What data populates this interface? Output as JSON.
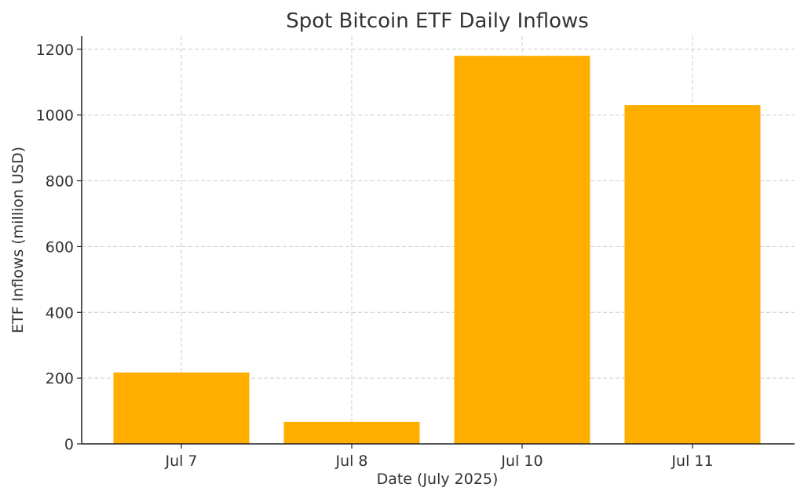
{
  "chart_data": {
    "type": "bar",
    "title": "Spot Bitcoin ETF Daily Inflows",
    "xlabel": "Date (July 2025)",
    "ylabel": "ETF Inflows (million USD)",
    "categories": [
      "Jul 7",
      "Jul 8",
      "Jul 10",
      "Jul 11"
    ],
    "values": [
      217,
      67,
      1180,
      1030
    ],
    "ylim": [
      0,
      1240
    ],
    "yticks": [
      0,
      200,
      400,
      600,
      800,
      1000,
      1200
    ],
    "grid": true,
    "bar_color": "#FFAE00"
  }
}
